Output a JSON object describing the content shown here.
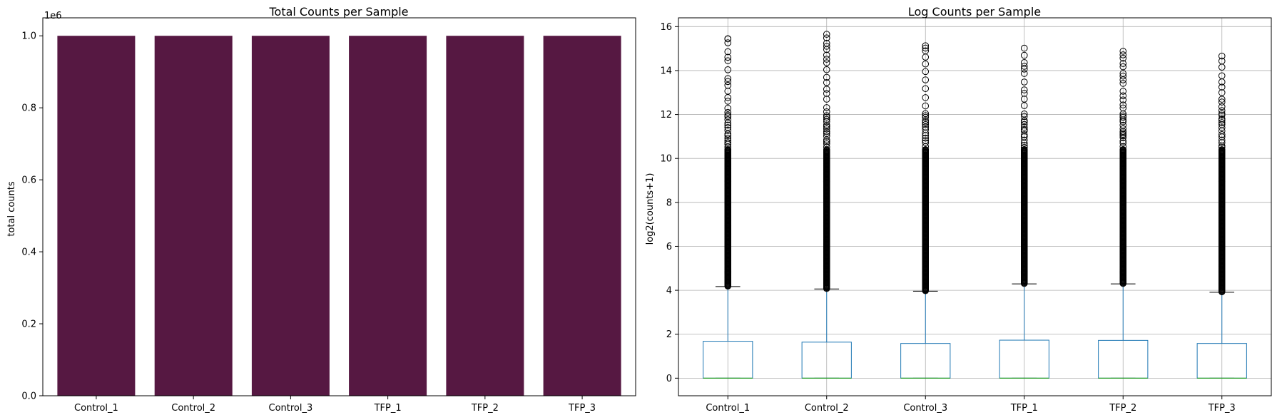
{
  "chart_data": [
    {
      "type": "bar",
      "title": "Total Counts per Sample",
      "xlabel": "",
      "ylabel": "total counts",
      "offset_label": "1e6",
      "categories": [
        "Control_1",
        "Control_2",
        "Control_3",
        "TFP_1",
        "TFP_2",
        "TFP_3"
      ],
      "values": [
        1000000,
        1000000,
        1000000,
        1000000,
        1000000,
        1000000
      ],
      "ylim": [
        0,
        1050000
      ],
      "yticks": [
        0,
        200000,
        400000,
        600000,
        800000,
        1000000
      ],
      "ytick_labels": [
        "0.0",
        "0.2",
        "0.4",
        "0.6",
        "0.8",
        "1.0"
      ],
      "grid": false,
      "bar_color": "#561842"
    },
    {
      "type": "box",
      "title": "Log Counts per Sample",
      "xlabel": "",
      "ylabel": "log2(counts+1)",
      "categories": [
        "Control_1",
        "Control_2",
        "Control_3",
        "TFP_1",
        "TFP_2",
        "TFP_3"
      ],
      "boxes": [
        {
          "name": "Control_1",
          "min": 0,
          "q1": 0,
          "median": 0,
          "q3": 1.68,
          "whisker_high": 4.17,
          "outlier_max": 15.45
        },
        {
          "name": "Control_2",
          "min": 0,
          "q1": 0,
          "median": 0,
          "q3": 1.64,
          "whisker_high": 4.06,
          "outlier_max": 15.65
        },
        {
          "name": "Control_3",
          "min": 0,
          "q1": 0,
          "median": 0,
          "q3": 1.58,
          "whisker_high": 3.96,
          "outlier_max": 15.13
        },
        {
          "name": "TFP_1",
          "min": 0,
          "q1": 0,
          "median": 0,
          "q3": 1.73,
          "whisker_high": 4.29,
          "outlier_max": 15.02
        },
        {
          "name": "TFP_2",
          "min": 0,
          "q1": 0,
          "median": 0,
          "q3": 1.72,
          "whisker_high": 4.29,
          "outlier_max": 14.88
        },
        {
          "name": "TFP_3",
          "min": 0,
          "q1": 0,
          "median": 0,
          "q3": 1.58,
          "whisker_high": 3.91,
          "outlier_max": 14.66
        }
      ],
      "ylim": [
        -0.8,
        16.4
      ],
      "yticks": [
        0,
        2,
        4,
        6,
        8,
        10,
        12,
        14,
        16
      ],
      "ytick_labels": [
        "0",
        "2",
        "4",
        "6",
        "8",
        "10",
        "12",
        "14",
        "16"
      ],
      "grid": true,
      "box_color": "#1f77b4",
      "median_color": "#2ca02c"
    }
  ]
}
